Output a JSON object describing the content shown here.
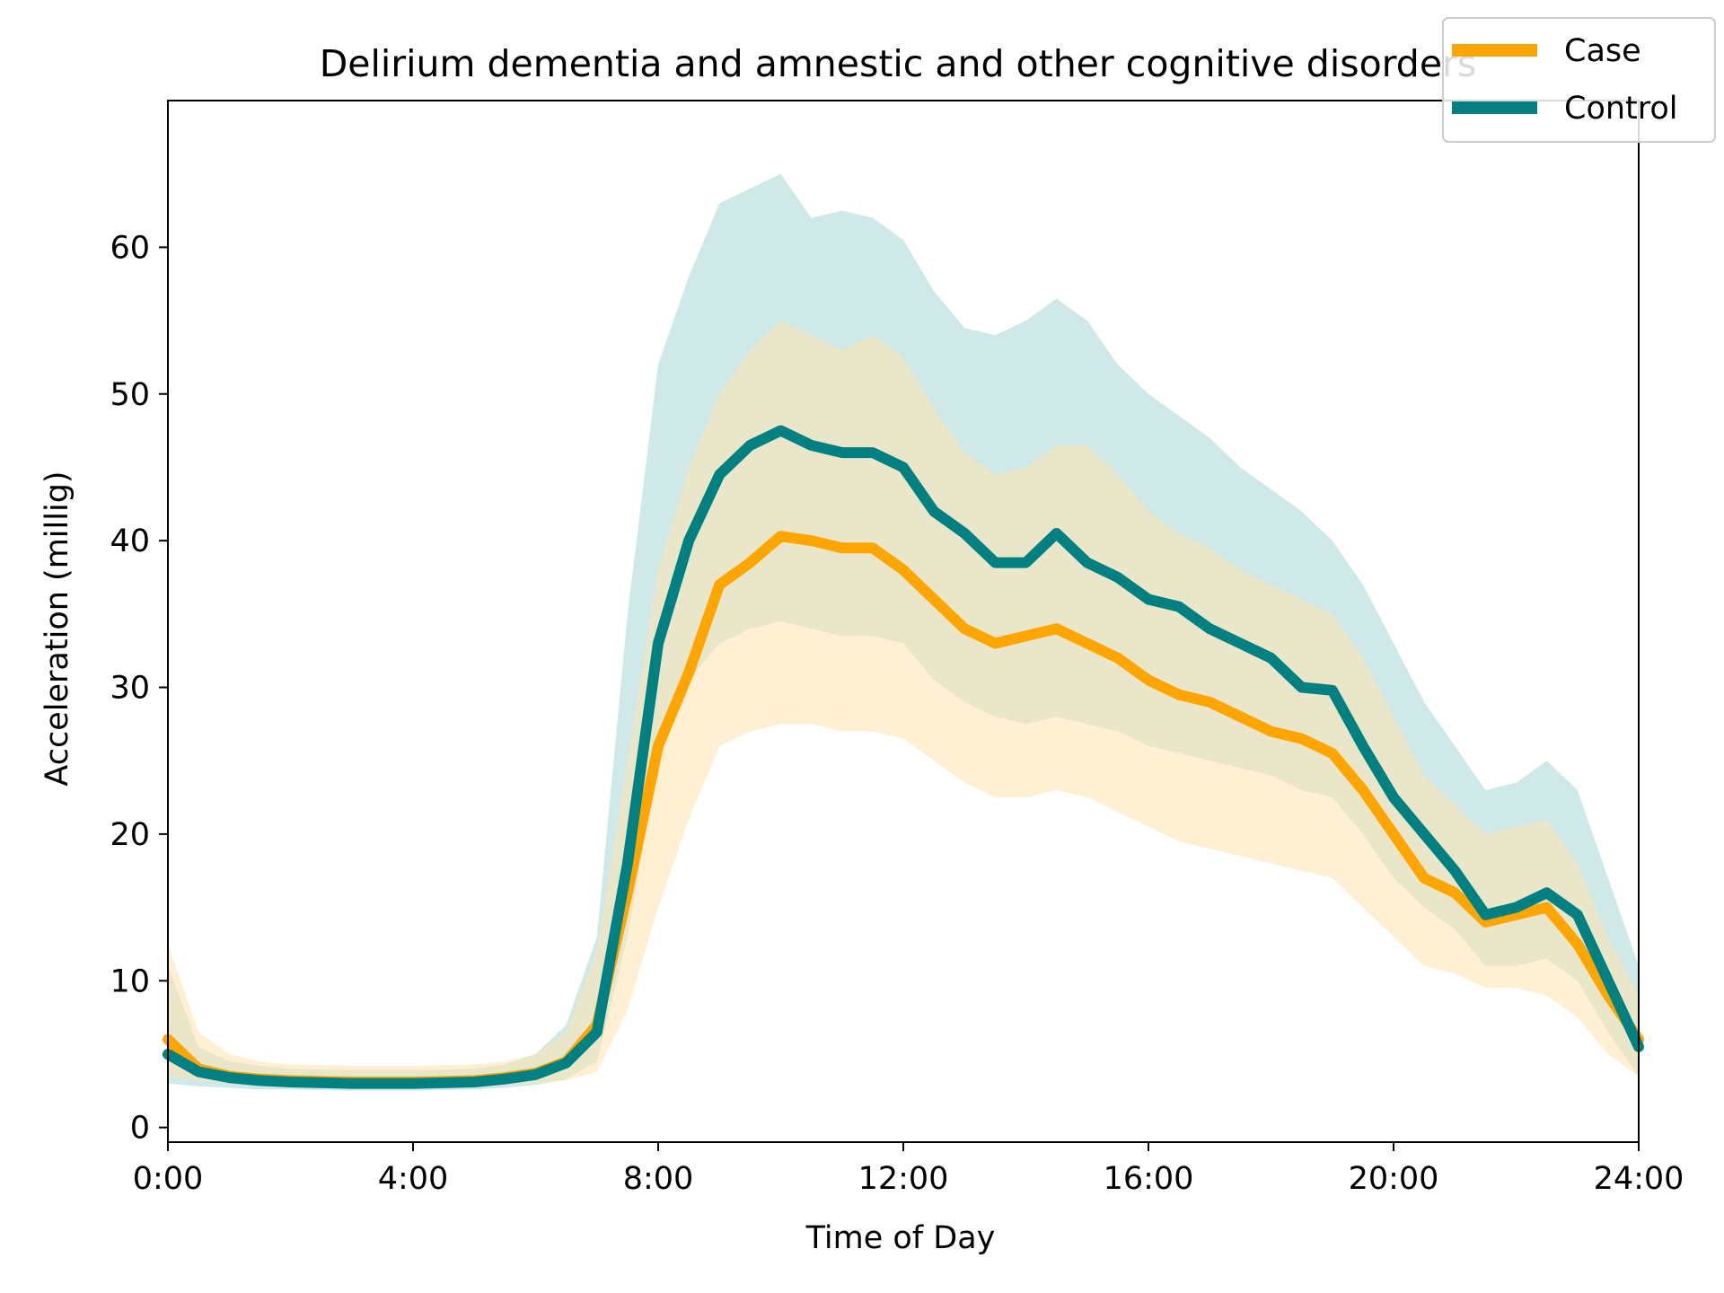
{
  "chart_data": {
    "type": "line",
    "title": "Delirium dementia and amnestic and other cognitive disorders",
    "xlabel": "Time of Day",
    "ylabel": "Acceleration (millig)",
    "xlim": [
      0,
      24
    ],
    "ylim": [
      -1,
      70
    ],
    "x_ticks": [
      {
        "value": 0,
        "label": "0:00"
      },
      {
        "value": 4,
        "label": "4:00"
      },
      {
        "value": 8,
        "label": "8:00"
      },
      {
        "value": 12,
        "label": "12:00"
      },
      {
        "value": 16,
        "label": "16:00"
      },
      {
        "value": 20,
        "label": "20:00"
      },
      {
        "value": 24,
        "label": "24:00"
      }
    ],
    "y_ticks": [
      {
        "value": 0,
        "label": "0"
      },
      {
        "value": 10,
        "label": "10"
      },
      {
        "value": 20,
        "label": "20"
      },
      {
        "value": 30,
        "label": "30"
      },
      {
        "value": 40,
        "label": "40"
      },
      {
        "value": 50,
        "label": "50"
      },
      {
        "value": 60,
        "label": "60"
      }
    ],
    "grid": false,
    "legend_position": "top-right",
    "x": [
      0,
      0.5,
      1,
      1.5,
      2,
      3,
      4,
      5,
      5.5,
      6,
      6.5,
      7,
      7.5,
      8,
      8.5,
      9,
      9.5,
      10,
      10.5,
      11,
      11.5,
      12,
      12.5,
      13,
      13.5,
      14,
      14.5,
      15,
      15.5,
      16,
      16.5,
      17,
      17.5,
      18,
      18.5,
      19,
      19.5,
      20,
      20.5,
      21,
      21.5,
      22,
      22.5,
      23,
      23.5,
      24
    ],
    "series": [
      {
        "name": "Case",
        "color": "#FFA500",
        "band_color": "#FFE4B0",
        "values": [
          6.0,
          4.0,
          3.5,
          3.3,
          3.2,
          3.1,
          3.1,
          3.2,
          3.4,
          3.7,
          4.5,
          7.0,
          16.0,
          26.0,
          31.0,
          37.0,
          38.5,
          40.3,
          40.0,
          39.5,
          39.5,
          38.0,
          36.0,
          34.0,
          33.0,
          33.5,
          34.0,
          33.0,
          32.0,
          30.5,
          29.5,
          29.0,
          28.0,
          27.0,
          26.5,
          25.5,
          23.0,
          20.0,
          17.0,
          16.0,
          14.0,
          14.5,
          15.0,
          12.5,
          9.0,
          6.0
        ],
        "lower": [
          3.5,
          3.2,
          3.0,
          2.9,
          2.9,
          2.8,
          2.8,
          2.8,
          2.9,
          3.0,
          3.2,
          3.8,
          8.0,
          15.0,
          21.0,
          26.0,
          27.0,
          27.5,
          27.5,
          27.0,
          27.0,
          26.5,
          25.0,
          23.5,
          22.5,
          22.5,
          23.0,
          22.5,
          21.5,
          20.5,
          19.5,
          19.0,
          18.5,
          18.0,
          17.5,
          17.0,
          15.0,
          13.0,
          11.0,
          10.5,
          9.5,
          9.5,
          9.0,
          7.5,
          5.0,
          3.5
        ],
        "upper": [
          12.5,
          6.5,
          5.0,
          4.5,
          4.3,
          4.2,
          4.2,
          4.3,
          4.5,
          5.0,
          6.5,
          12.0,
          25.0,
          38.0,
          45.0,
          50.0,
          53.0,
          55.0,
          54.0,
          53.0,
          54.0,
          52.5,
          49.0,
          46.0,
          44.5,
          45.0,
          46.5,
          46.5,
          44.5,
          42.0,
          40.5,
          39.5,
          38.0,
          37.0,
          36.0,
          35.0,
          32.0,
          28.0,
          24.0,
          22.0,
          20.0,
          20.5,
          21.0,
          18.0,
          13.0,
          9.0
        ]
      },
      {
        "name": "Control",
        "color": "#008080",
        "band_color": "#A8D5D5",
        "values": [
          5.0,
          3.8,
          3.4,
          3.2,
          3.1,
          3.0,
          3.0,
          3.1,
          3.3,
          3.6,
          4.4,
          6.5,
          18.0,
          33.0,
          40.0,
          44.5,
          46.5,
          47.5,
          46.5,
          46.0,
          46.0,
          45.0,
          42.0,
          40.5,
          38.5,
          38.5,
          40.5,
          38.5,
          37.5,
          36.0,
          35.5,
          34.0,
          33.0,
          32.0,
          30.0,
          29.8,
          26.0,
          22.5,
          20.0,
          17.5,
          14.5,
          15.0,
          16.0,
          14.5,
          10.0,
          5.5
        ],
        "lower": [
          3.0,
          2.8,
          2.7,
          2.6,
          2.6,
          2.5,
          2.5,
          2.6,
          2.7,
          2.9,
          3.3,
          4.5,
          13.0,
          25.0,
          30.5,
          33.0,
          34.0,
          34.5,
          34.0,
          33.5,
          33.5,
          33.0,
          30.5,
          29.0,
          28.0,
          27.5,
          28.0,
          27.5,
          27.0,
          26.0,
          25.5,
          25.0,
          24.5,
          24.0,
          23.0,
          22.5,
          20.0,
          17.0,
          15.0,
          13.5,
          11.0,
          11.0,
          11.5,
          10.0,
          6.5,
          3.5
        ],
        "upper": [
          11.0,
          5.5,
          4.5,
          4.2,
          4.0,
          3.9,
          3.9,
          4.0,
          4.3,
          5.0,
          7.0,
          13.0,
          35.0,
          52.0,
          58.0,
          63.0,
          64.0,
          65.0,
          62.0,
          62.5,
          62.0,
          60.5,
          57.0,
          54.5,
          54.0,
          55.0,
          56.5,
          55.0,
          52.0,
          50.0,
          48.5,
          47.0,
          45.0,
          43.5,
          42.0,
          40.0,
          37.0,
          33.0,
          29.0,
          26.0,
          23.0,
          23.5,
          25.0,
          23.0,
          17.0,
          11.0
        ]
      }
    ]
  }
}
